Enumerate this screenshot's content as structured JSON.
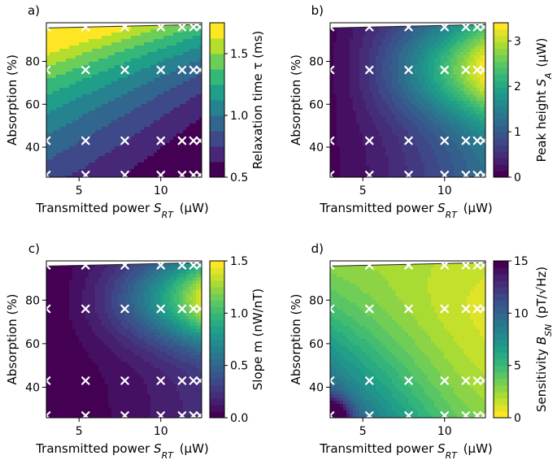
{
  "figure": {
    "background": "#ffffff",
    "marker_color": "#ffffff"
  },
  "chart_data": [
    {
      "panel_label": "a)",
      "type": "heatmap",
      "xlabel": "Transmitted power",
      "xlabel_symbol": "S",
      "xlabel_sub": "RT",
      "xlabel_unit": "(µW)",
      "ylabel": "Absorption (%)",
      "xlim": [
        3,
        12.5
      ],
      "ylim": [
        26,
        98
      ],
      "xticks": [
        5,
        10
      ],
      "yticks": [
        40,
        60,
        80
      ],
      "colorbar": {
        "label": "Relaxation time τ (ms)",
        "colormap": "viridis",
        "reversed": false,
        "ticks": [
          0.5,
          1.0,
          1.5
        ],
        "tick_labels": [
          "0.5",
          "1.0",
          "1.5"
        ],
        "vmin": 0.5,
        "vmax": 1.75,
        "levels": 10
      },
      "model": "relaxation",
      "markers_x": [
        3,
        5.4,
        7.8,
        10,
        11.3,
        12,
        12.4
      ],
      "markers_y": [
        27,
        43,
        76,
        96
      ]
    },
    {
      "panel_label": "b)",
      "type": "heatmap",
      "xlabel": "Transmitted power",
      "xlabel_symbol": "S",
      "xlabel_sub": "RT",
      "xlabel_unit": "(µW)",
      "ylabel": "Absorption (%)",
      "xlim": [
        3,
        12.5
      ],
      "ylim": [
        26,
        98
      ],
      "xticks": [
        5,
        10
      ],
      "yticks": [
        40,
        60,
        80
      ],
      "colorbar": {
        "label": "Peak height S_A (µW)",
        "colormap": "viridis",
        "reversed": false,
        "ticks": [
          0,
          1,
          2,
          3
        ],
        "tick_labels": [
          "0",
          "1",
          "2",
          "3"
        ],
        "vmin": 0,
        "vmax": 3.4,
        "levels": 24
      },
      "model": "peak",
      "markers_x": [
        3,
        5.4,
        7.8,
        10,
        11.3,
        12,
        12.4
      ],
      "markers_y": [
        27,
        43,
        76,
        96
      ]
    },
    {
      "panel_label": "c)",
      "type": "heatmap",
      "xlabel": "Transmitted power",
      "xlabel_symbol": "S",
      "xlabel_sub": "RT",
      "xlabel_unit": "(µW)",
      "ylabel": "Absorption (%)",
      "xlim": [
        3,
        12.5
      ],
      "ylim": [
        26,
        98
      ],
      "xticks": [
        5,
        10
      ],
      "yticks": [
        40,
        60,
        80
      ],
      "colorbar": {
        "label": "Slope m (nW/nT)",
        "colormap": "viridis",
        "reversed": false,
        "ticks": [
          0.0,
          0.5,
          1.0,
          1.5
        ],
        "tick_labels": [
          "0.0",
          "0.5",
          "1.0",
          "1.5"
        ],
        "vmin": 0,
        "vmax": 1.5,
        "levels": 24
      },
      "model": "slope",
      "markers_x": [
        3,
        5.4,
        7.8,
        10,
        11.3,
        12,
        12.4
      ],
      "markers_y": [
        27,
        43,
        76,
        96
      ]
    },
    {
      "panel_label": "d)",
      "type": "heatmap",
      "xlabel": "Transmitted power",
      "xlabel_symbol": "S",
      "xlabel_sub": "RT",
      "xlabel_unit": "(µW)",
      "ylabel": "Absorption (%)",
      "xlim": [
        3,
        12.5
      ],
      "ylim": [
        26,
        98
      ],
      "xticks": [
        5,
        10
      ],
      "yticks": [
        40,
        60,
        80
      ],
      "colorbar": {
        "label": "Sensitivity B_SN (pT/√Hz)",
        "colormap": "viridis",
        "reversed": true,
        "ticks": [
          0,
          5,
          10,
          15
        ],
        "tick_labels": [
          "0",
          "5",
          "10",
          "15"
        ],
        "vmin": 0,
        "vmax": 15,
        "levels": 24
      },
      "model": "sensitivity",
      "markers_x": [
        3,
        5.4,
        7.8,
        10,
        11.3,
        12,
        12.4
      ],
      "markers_y": [
        27,
        43,
        76,
        96
      ]
    }
  ]
}
